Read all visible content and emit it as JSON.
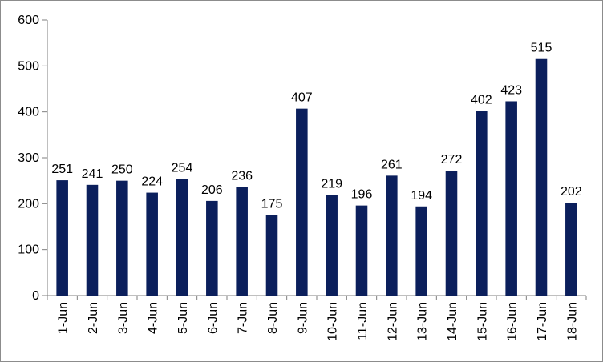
{
  "chart_data": {
    "type": "bar",
    "title": "",
    "xlabel": "",
    "ylabel": "",
    "categories": [
      "1-Jun",
      "2-Jun",
      "3-Jun",
      "4-Jun",
      "5-Jun",
      "6-Jun",
      "7-Jun",
      "8-Jun",
      "9-Jun",
      "10-Jun",
      "11-Jun",
      "12-Jun",
      "13-Jun",
      "14-Jun",
      "15-Jun",
      "16-Jun",
      "17-Jun",
      "18-Jun"
    ],
    "values": [
      251,
      241,
      250,
      224,
      254,
      206,
      236,
      175,
      407,
      219,
      196,
      261,
      194,
      272,
      402,
      423,
      515,
      202
    ],
    "ylim": [
      0,
      600
    ],
    "yticks": [
      "0",
      "100",
      "200",
      "300",
      "400",
      "500",
      "600"
    ],
    "bar_color": "#0b1f5c",
    "grid": false,
    "legend": "none",
    "data_labels": true,
    "x_tick_rotation": "vertical"
  }
}
